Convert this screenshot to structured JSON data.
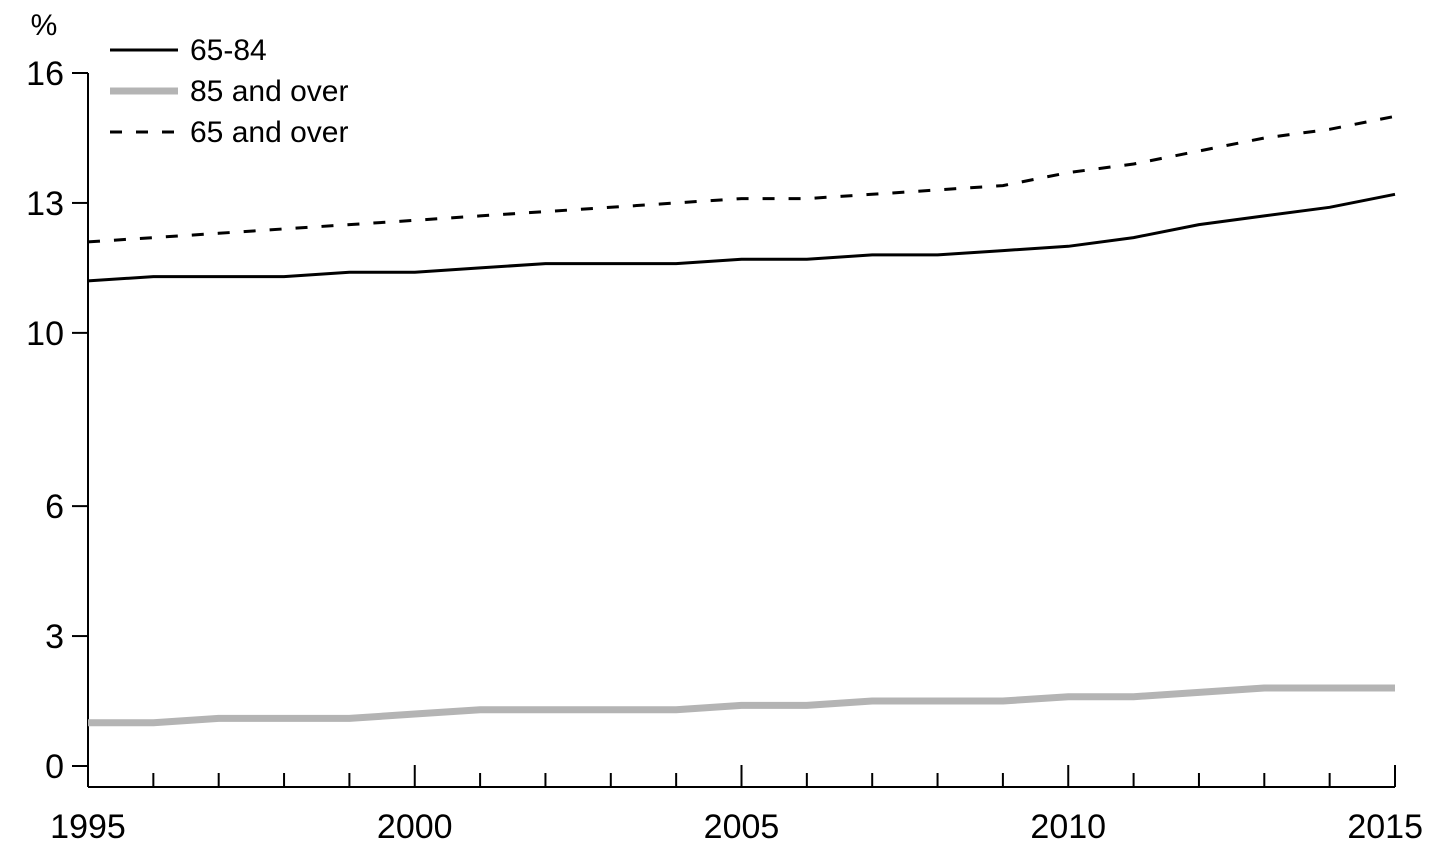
{
  "chart_data": {
    "type": "line",
    "title": "",
    "xlabel": "",
    "ylabel": "%",
    "xlim": [
      1995,
      2015
    ],
    "ylim": [
      0,
      16
    ],
    "yticks": [
      0,
      3,
      6,
      10,
      13,
      16
    ],
    "ytick_labels": [
      "0",
      "3",
      "6",
      "10",
      "13",
      "16"
    ],
    "xticks": [
      1995,
      2000,
      2005,
      2010,
      2015
    ],
    "xtick_labels": [
      "1995",
      "2000",
      "2005",
      "2010",
      "2015"
    ],
    "xminor_step": 1,
    "grid": false,
    "legend_position": "top-left",
    "x": [
      1995,
      1996,
      1997,
      1998,
      1999,
      2000,
      2001,
      2002,
      2003,
      2004,
      2005,
      2006,
      2007,
      2008,
      2009,
      2010,
      2011,
      2012,
      2013,
      2014,
      2015
    ],
    "series": [
      {
        "name": "65-84",
        "color": "#000000",
        "style": "solid",
        "values": [
          11.2,
          11.3,
          11.3,
          11.3,
          11.4,
          11.4,
          11.5,
          11.6,
          11.6,
          11.6,
          11.7,
          11.7,
          11.8,
          11.8,
          11.9,
          12.0,
          12.2,
          12.5,
          12.7,
          12.9,
          13.2
        ]
      },
      {
        "name": "85 and over",
        "color": "#b4b4b4",
        "style": "solid",
        "values": [
          1.0,
          1.0,
          1.1,
          1.1,
          1.1,
          1.2,
          1.3,
          1.3,
          1.3,
          1.3,
          1.4,
          1.4,
          1.5,
          1.5,
          1.5,
          1.6,
          1.6,
          1.7,
          1.8,
          1.8,
          1.8
        ]
      },
      {
        "name": "65 and over",
        "color": "#000000",
        "style": "dashed",
        "values": [
          12.1,
          12.2,
          12.3,
          12.4,
          12.5,
          12.6,
          12.7,
          12.8,
          12.9,
          13.0,
          13.1,
          13.1,
          13.2,
          13.3,
          13.4,
          13.7,
          13.9,
          14.2,
          14.5,
          14.7,
          15.0
        ]
      }
    ]
  }
}
